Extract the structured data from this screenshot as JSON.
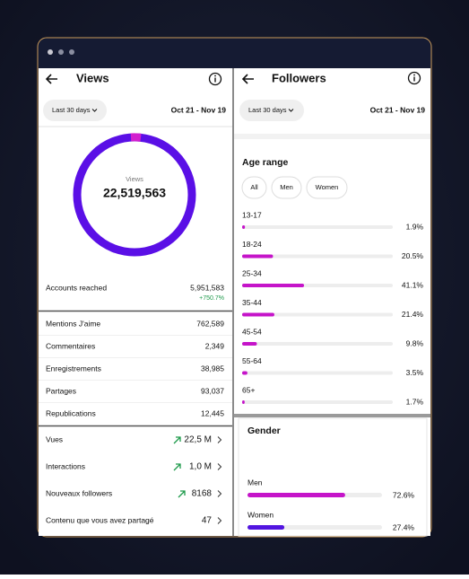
{
  "views_panel": {
    "title": "Views",
    "filter": "Last 30 days",
    "date_range": "Oct 21 - Nov 19",
    "ring_label": "Views",
    "total": "22,519,563",
    "accounts_reached": {
      "label": "Accounts reached",
      "value": "5,951,583",
      "change": "+750.7%"
    },
    "interactions": [
      {
        "label": "Mentions J'aime",
        "value": "762,589"
      },
      {
        "label": "Commentaires",
        "value": "2,349"
      },
      {
        "label": "Enregistrements",
        "value": "38,985"
      },
      {
        "label": "Partages",
        "value": "93,037"
      },
      {
        "label": "Republications",
        "value": "12,445"
      }
    ],
    "summary": [
      {
        "label": "Vues",
        "value": "22,5 M",
        "trend": true
      },
      {
        "label": "Interactions",
        "value": "1,0 M",
        "trend": true
      },
      {
        "label": "Nouveaux followers",
        "value": "8168",
        "trend": true
      },
      {
        "label": "Contenu que vous avez partagé",
        "value": "47",
        "trend": false
      }
    ]
  },
  "followers_panel": {
    "title": "Followers",
    "filter": "Last 30 days",
    "date_range": "Oct 21 - Nov 19",
    "age_range": {
      "title": "Age range",
      "filters": [
        "All",
        "Men",
        "Women"
      ],
      "rows": [
        {
          "label": "13-17",
          "value": 1.9,
          "value_label": "1.9%"
        },
        {
          "label": "18-24",
          "value": 20.5,
          "value_label": "20.5%"
        },
        {
          "label": "25-34",
          "value": 41.1,
          "value_label": "41.1%"
        },
        {
          "label": "35-44",
          "value": 21.4,
          "value_label": "21.4%"
        },
        {
          "label": "45-54",
          "value": 9.8,
          "value_label": "9.8%"
        },
        {
          "label": "55-64",
          "value": 3.5,
          "value_label": "3.5%"
        },
        {
          "label": "65+",
          "value": 1.7,
          "value_label": "1.7%"
        }
      ]
    },
    "gender": {
      "title": "Gender",
      "rows": [
        {
          "label": "Men",
          "value": 72.6,
          "value_label": "72.6%",
          "color": "#c514c9"
        },
        {
          "label": "Women",
          "value": 27.4,
          "value_label": "27.4%",
          "color": "#5215e0"
        }
      ]
    }
  }
}
